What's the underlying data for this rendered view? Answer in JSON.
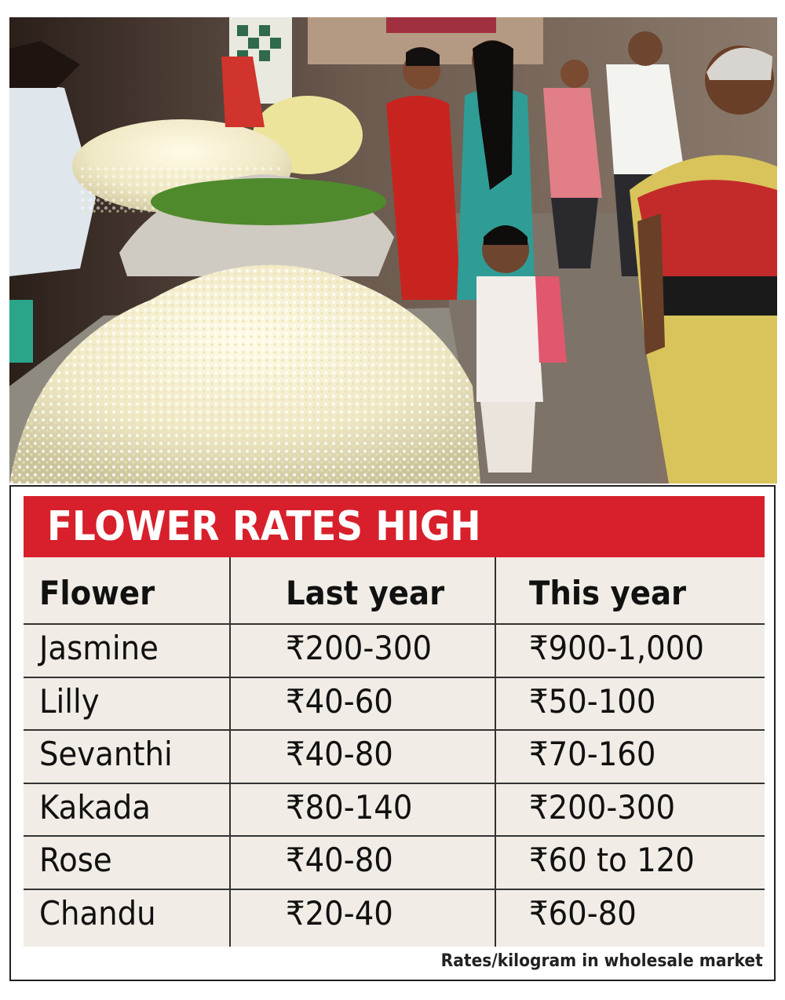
{
  "title": "FLOWER RATES HIGH",
  "table": {
    "headers": [
      "Flower",
      "Last year",
      "This year"
    ],
    "rows": [
      [
        "Jasmine",
        "₹200-300",
        "₹900-1,000"
      ],
      [
        "Lilly",
        "₹40-60",
        "₹50-100"
      ],
      [
        "Sevanthi",
        "₹40-80",
        "₹70-160"
      ],
      [
        "Kakada",
        "₹80-140",
        "₹200-300"
      ],
      [
        "Rose",
        "₹40-80",
        "₹60 to 120"
      ],
      [
        "Chandu",
        "₹20-40",
        "₹60-80"
      ]
    ]
  },
  "footnote": "Rates/kilogram in wholesale market",
  "colors": {
    "banner": "#d7202b",
    "table_bg": "#f1ece5",
    "rule": "#333333"
  }
}
